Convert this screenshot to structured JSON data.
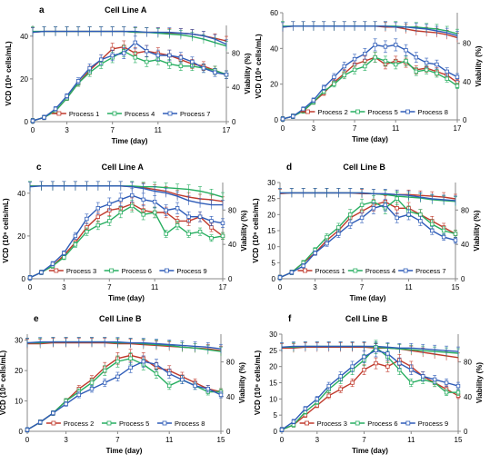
{
  "chart_data": [
    {
      "type": "line",
      "panel_letter": "a",
      "title": "Cell Line A",
      "xlabel": "Time (day)",
      "ylabel": "VCD (10⁶ cells/mL)",
      "y2label": "Viability (%)",
      "x_ticks": [
        0,
        3,
        7,
        11,
        17
      ],
      "x_ticks_labels": [
        "0",
        "3",
        "7",
        "11",
        "17"
      ],
      "xlim": [
        0,
        17
      ],
      "ylim": [
        0,
        45
      ],
      "y_ticks": [
        0,
        20,
        40
      ],
      "y2lim": [
        0,
        112
      ],
      "y2_ticks": [
        0,
        40,
        80
      ],
      "grid": false,
      "legend_position": "bottom",
      "x": [
        0,
        1,
        2,
        3,
        4,
        5,
        6,
        7,
        8,
        9,
        10,
        11,
        12,
        13,
        14,
        15,
        16,
        17
      ],
      "series": [
        {
          "name": "Process 1",
          "color": "#c0392b",
          "vcd": [
            0.4,
            2,
            5,
            11,
            18,
            24,
            29,
            34,
            35,
            32,
            33,
            32,
            31,
            29,
            27,
            26,
            24,
            22
          ],
          "viability": [
            104,
            105,
            105,
            105,
            105,
            105,
            105,
            105,
            105,
            104,
            104,
            104,
            103,
            103,
            102,
            100,
            97,
            94
          ]
        },
        {
          "name": "Process 4",
          "color": "#27ae60",
          "vcd": [
            0.4,
            2,
            5,
            11,
            18,
            23,
            27,
            30,
            33,
            30,
            28,
            29,
            27,
            26,
            26,
            25,
            24,
            22
          ],
          "viability": [
            105,
            105,
            105,
            105,
            105,
            105,
            105,
            105,
            105,
            104,
            104,
            103,
            102,
            101,
            99,
            96,
            92,
            88
          ]
        },
        {
          "name": "Process 7",
          "color": "#2e5cb8",
          "vcd": [
            0.4,
            2,
            6,
            12,
            19,
            25,
            29,
            31,
            32,
            37,
            33,
            31,
            31,
            30,
            28,
            25,
            23,
            22
          ],
          "viability": [
            104,
            105,
            105,
            105,
            105,
            105,
            105,
            105,
            105,
            105,
            104,
            104,
            104,
            103,
            102,
            100,
            96,
            90
          ]
        }
      ]
    },
    {
      "type": "line",
      "panel_letter": "b",
      "title": "Cell Line A",
      "xlabel": "Time (day)",
      "ylabel": "VCD (10⁶ cells/mL)",
      "y2label": "Viability (%)",
      "x_ticks": [
        0,
        3,
        7,
        11,
        17
      ],
      "x_ticks_labels": [
        "0",
        "3",
        "7",
        "11",
        "17"
      ],
      "xlim": [
        0,
        17
      ],
      "ylim": [
        0,
        60
      ],
      "y_ticks": [
        0,
        20,
        40,
        60
      ],
      "y2lim": [
        0,
        112
      ],
      "y2_ticks": [
        0,
        40,
        80
      ],
      "grid": false,
      "legend_position": "bottom",
      "x": [
        0,
        1,
        2,
        3,
        4,
        5,
        6,
        7,
        8,
        9,
        10,
        11,
        12,
        13,
        14,
        15,
        16,
        17
      ],
      "series": [
        {
          "name": "Process 2",
          "color": "#c0392b",
          "vcd": [
            0.5,
            2,
            5,
            10,
            15,
            21,
            26,
            31,
            33,
            35,
            31,
            33,
            32,
            28,
            29,
            27,
            25,
            21
          ],
          "viability": [
            97,
            98,
            98,
            98,
            98,
            98,
            98,
            98,
            98,
            98,
            97,
            97,
            95,
            93,
            92,
            91,
            89,
            86
          ]
        },
        {
          "name": "Process 5",
          "color": "#27ae60",
          "vcd": [
            0.5,
            2,
            5,
            10,
            16,
            20,
            25,
            28,
            30,
            35,
            33,
            31,
            33,
            27,
            28,
            26,
            23,
            19
          ],
          "viability": [
            98,
            98,
            98,
            98,
            98,
            98,
            98,
            98,
            98,
            98,
            98,
            98,
            97,
            97,
            96,
            95,
            93,
            90
          ]
        },
        {
          "name": "Process 8",
          "color": "#2e5cb8",
          "vcd": [
            0.5,
            2,
            6,
            11,
            18,
            24,
            30,
            34,
            37,
            42,
            41,
            42,
            39,
            35,
            32,
            31,
            27,
            24
          ],
          "viability": [
            97,
            98,
            98,
            98,
            98,
            98,
            98,
            98,
            98,
            98,
            98,
            97,
            97,
            96,
            95,
            93,
            91,
            88
          ]
        }
      ]
    },
    {
      "type": "line",
      "panel_letter": "c",
      "title": "Cell Line A",
      "xlabel": "Time (day)",
      "ylabel": "VCD (10⁶ cells/mL)",
      "y2label": "Viability (%)",
      "x_ticks": [
        0,
        3,
        7,
        11,
        17
      ],
      "x_ticks_labels": [
        "0",
        "3",
        "7",
        "11",
        "17"
      ],
      "xlim": [
        0,
        17
      ],
      "ylim": [
        0,
        45
      ],
      "y_ticks": [
        0,
        20,
        40
      ],
      "y2lim": [
        0,
        112
      ],
      "y2_ticks": [
        0,
        40,
        80
      ],
      "grid": false,
      "legend_position": "bottom",
      "x": [
        0,
        1,
        2,
        3,
        4,
        5,
        6,
        7,
        8,
        9,
        10,
        11,
        12,
        13,
        14,
        15,
        16,
        17
      ],
      "series": [
        {
          "name": "Process 3",
          "color": "#c0392b",
          "vcd": [
            0.5,
            3,
            6,
            11,
            17,
            24,
            29,
            32,
            33,
            35,
            32,
            31,
            31,
            27,
            27,
            29,
            24,
            20
          ],
          "viability": [
            108,
            108,
            108,
            108,
            108,
            108,
            108,
            108,
            108,
            107,
            106,
            104,
            102,
            98,
            95,
            93,
            92,
            90
          ]
        },
        {
          "name": "Process 6",
          "color": "#27ae60",
          "vcd": [
            0.5,
            3,
            6,
            10,
            16,
            22,
            25,
            27,
            31,
            34,
            30,
            31,
            21,
            25,
            21,
            22,
            19,
            20
          ],
          "viability": [
            108,
            108,
            108,
            108,
            108,
            108,
            108,
            108,
            108,
            108,
            107,
            107,
            106,
            105,
            104,
            102,
            99,
            95
          ]
        },
        {
          "name": "Process 9",
          "color": "#2e5cb8",
          "vcd": [
            0.5,
            3,
            7,
            12,
            20,
            28,
            33,
            35,
            37,
            39,
            37,
            36,
            32,
            33,
            29,
            29,
            27,
            26
          ],
          "viability": [
            107,
            108,
            108,
            108,
            108,
            108,
            108,
            108,
            108,
            107,
            105,
            102,
            100,
            96,
            91,
            88,
            86,
            86
          ]
        }
      ]
    },
    {
      "type": "line",
      "panel_letter": "d",
      "title": "Cell Line B",
      "xlabel": "Time (day)",
      "ylabel": "VCD (10⁶ cells/mL)",
      "y2label": "Viability (%)",
      "x_ticks": [
        0,
        3,
        7,
        11,
        15
      ],
      "x_ticks_labels": [
        "0",
        "3",
        "7",
        "11",
        "15"
      ],
      "xlim": [
        0,
        15
      ],
      "ylim": [
        0,
        30
      ],
      "y_ticks": [
        0,
        5,
        10,
        15,
        20,
        25,
        30
      ],
      "y2lim": [
        0,
        112
      ],
      "y2_ticks": [
        0,
        40,
        80
      ],
      "grid": false,
      "legend_position": "bottom",
      "x": [
        0,
        1,
        2,
        3,
        4,
        5,
        6,
        7,
        8,
        9,
        10,
        11,
        12,
        13,
        14,
        15
      ],
      "series": [
        {
          "name": "Process 1",
          "color": "#c0392b",
          "vcd": [
            0.4,
            2,
            5,
            8,
            12,
            15,
            19,
            21,
            23,
            24,
            22,
            22,
            20,
            18,
            16,
            14
          ],
          "viability": [
            99,
            100,
            100,
            100,
            100,
            100,
            100,
            99,
            99,
            98,
            98,
            98,
            97,
            96,
            95,
            93
          ]
        },
        {
          "name": "Process 4",
          "color": "#27ae60",
          "vcd": [
            0.4,
            2,
            5,
            9,
            13,
            16,
            20,
            23,
            24,
            22,
            25,
            21,
            20,
            17,
            15,
            14
          ],
          "viability": [
            100,
            100,
            100,
            100,
            100,
            100,
            100,
            100,
            99,
            98,
            96,
            95,
            94,
            92,
            91,
            90
          ]
        },
        {
          "name": "Process 7",
          "color": "#2e5cb8",
          "vcd": [
            0.4,
            2,
            4,
            8,
            11,
            14,
            17,
            19,
            22,
            23,
            19,
            20,
            18,
            15,
            13,
            12
          ],
          "viability": [
            100,
            100,
            100,
            100,
            100,
            100,
            100,
            100,
            99,
            99,
            98,
            97,
            95,
            93,
            92,
            91
          ]
        }
      ]
    },
    {
      "type": "line",
      "panel_letter": "e",
      "title": "Cell Line B",
      "xlabel": "Time (day)",
      "ylabel": "VCD (10⁶ cells/mL)",
      "y2label": "Viability (%)",
      "x_ticks": [
        0,
        3,
        7,
        11,
        15
      ],
      "x_ticks_labels": [
        "0",
        "3",
        "7",
        "11",
        "15"
      ],
      "xlim": [
        0,
        15
      ],
      "ylim": [
        0,
        32
      ],
      "y_ticks": [
        0,
        10,
        20,
        30
      ],
      "y2lim": [
        0,
        112
      ],
      "y2_ticks": [
        0,
        40,
        80
      ],
      "grid": false,
      "legend_position": "bottom",
      "x": [
        0,
        1,
        2,
        3,
        4,
        5,
        6,
        7,
        8,
        9,
        10,
        11,
        12,
        13,
        14,
        15
      ],
      "series": [
        {
          "name": "Process 2",
          "color": "#c0392b",
          "vcd": [
            0.5,
            3,
            6,
            10,
            14,
            17,
            21,
            24,
            25,
            24,
            21,
            20,
            18,
            16,
            14,
            13
          ],
          "viability": [
            101,
            101,
            102,
            102,
            102,
            102,
            102,
            101,
            101,
            100,
            99,
            98,
            97,
            96,
            95,
            93
          ]
        },
        {
          "name": "Process 5",
          "color": "#27ae60",
          "vcd": [
            0.5,
            3,
            6,
            10,
            13,
            16,
            20,
            23,
            24,
            22,
            19,
            15,
            17,
            15,
            13,
            13
          ],
          "viability": [
            102,
            102,
            103,
            103,
            103,
            103,
            103,
            102,
            102,
            101,
            100,
            99,
            97,
            96,
            94,
            92
          ]
        },
        {
          "name": "Process 8",
          "color": "#2e5cb8",
          "vcd": [
            0.5,
            3,
            6,
            9,
            12,
            14,
            16,
            18,
            21,
            23,
            22,
            19,
            17,
            15,
            14,
            12
          ],
          "viability": [
            102,
            103,
            103,
            103,
            103,
            103,
            103,
            103,
            102,
            102,
            101,
            100,
            99,
            98,
            97,
            95
          ]
        }
      ]
    },
    {
      "type": "line",
      "panel_letter": "f",
      "title": "Cell Line B",
      "xlabel": "Time (day)",
      "ylabel": "VCD (10⁶ cells/mL)",
      "y2label": "Viability (%)",
      "x_ticks": [
        0,
        3,
        7,
        11,
        15
      ],
      "x_ticks_labels": [
        "0",
        "3",
        "7",
        "11",
        "15"
      ],
      "xlim": [
        0,
        15
      ],
      "ylim": [
        0,
        30
      ],
      "y_ticks": [
        0,
        5,
        10,
        15,
        20,
        25,
        30
      ],
      "y2lim": [
        0,
        112
      ],
      "y2_ticks": [
        0,
        40,
        80
      ],
      "grid": false,
      "legend_position": "bottom",
      "x": [
        0,
        1,
        2,
        3,
        4,
        5,
        6,
        7,
        8,
        9,
        10,
        11,
        12,
        13,
        14,
        15
      ],
      "series": [
        {
          "name": "Process 3",
          "color": "#c0392b",
          "vcd": [
            0.5,
            2,
            5,
            8,
            11,
            13,
            15,
            19,
            21,
            20,
            22,
            20,
            17,
            15,
            13,
            11
          ],
          "viability": [
            96,
            96,
            97,
            97,
            97,
            97,
            97,
            97,
            96,
            96,
            95,
            93,
            91,
            89,
            87,
            85
          ]
        },
        {
          "name": "Process 6",
          "color": "#27ae60",
          "vcd": [
            0.5,
            2,
            6,
            9,
            13,
            16,
            19,
            22,
            26,
            23,
            19,
            15,
            16,
            15,
            12,
            12
          ],
          "viability": [
            97,
            97,
            98,
            98,
            98,
            98,
            98,
            98,
            97,
            96,
            95,
            94,
            93,
            92,
            91,
            90
          ]
        },
        {
          "name": "Process 9",
          "color": "#2e5cb8",
          "vcd": [
            0.5,
            3,
            7,
            10,
            14,
            17,
            20,
            23,
            25,
            24,
            21,
            19,
            17,
            16,
            15,
            14
          ],
          "viability": [
            97,
            98,
            98,
            98,
            98,
            98,
            98,
            98,
            98,
            97,
            96,
            96,
            95,
            94,
            93,
            92
          ]
        }
      ]
    }
  ]
}
